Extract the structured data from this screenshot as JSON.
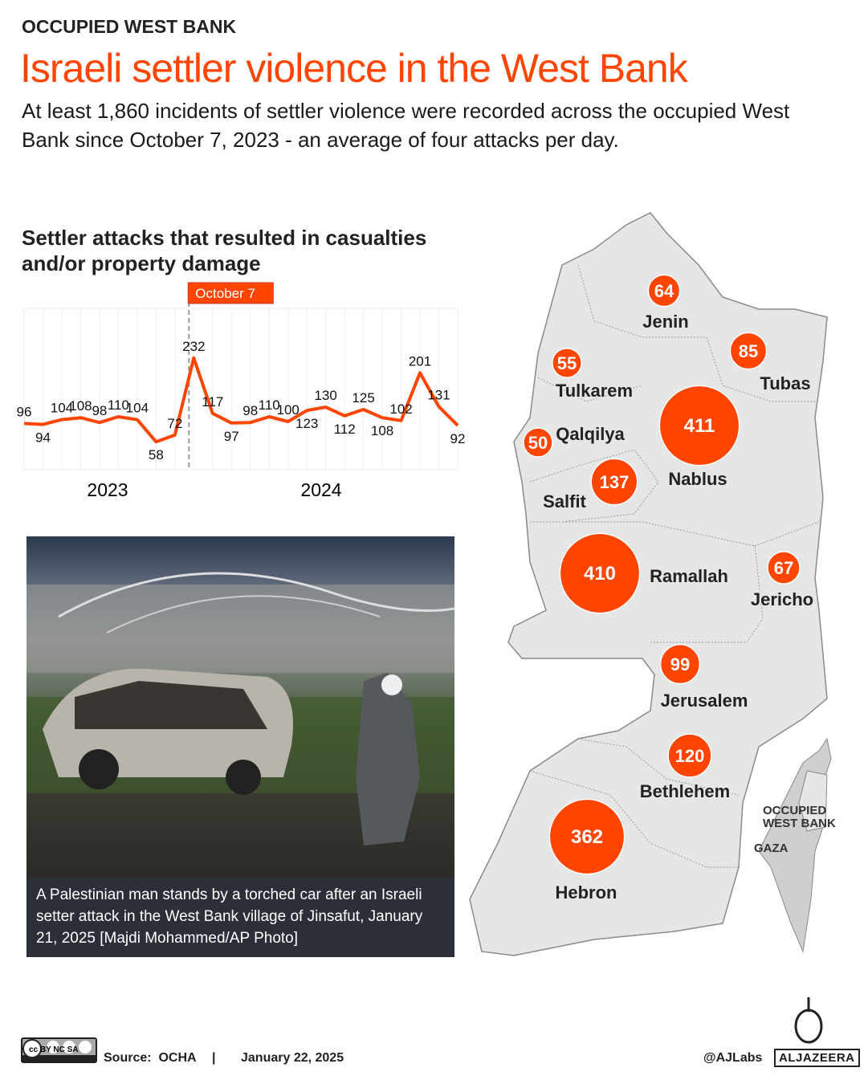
{
  "header": {
    "kicker": "OCCUPIED WEST BANK",
    "title": "Israeli settler violence in the West Bank",
    "subtitle": "At least 1,860 incidents of settler violence were recorded across the occupied West Bank since October 7, 2023 - an average of four attacks per day."
  },
  "chart_data": {
    "type": "line",
    "title": "Settler attacks that resulted in casualties and/or property damage",
    "x_labels": [
      "2023",
      "2024"
    ],
    "values": [
      96,
      94,
      104,
      108,
      98,
      110,
      104,
      58,
      72,
      232,
      117,
      97,
      98,
      110,
      100,
      123,
      130,
      112,
      125,
      108,
      102,
      201,
      131,
      92
    ],
    "annotation": "October 7",
    "annotation_index": 9,
    "ylim": [
      0,
      335
    ],
    "grid": "vertical",
    "color": "#ff4500"
  },
  "map": {
    "color": "#ff4500",
    "regions": [
      {
        "name": "Jenin",
        "value": "64"
      },
      {
        "name": "Tubas",
        "value": "85"
      },
      {
        "name": "Tulkarem",
        "value": "55"
      },
      {
        "name": "Nablus",
        "value": "411"
      },
      {
        "name": "Qalqilya",
        "value": "50"
      },
      {
        "name": "Salfit",
        "value": "137"
      },
      {
        "name": "Ramallah",
        "value": "410"
      },
      {
        "name": "Jericho",
        "value": "67"
      },
      {
        "name": "Jerusalem",
        "value": "99"
      },
      {
        "name": "Bethlehem",
        "value": "120"
      },
      {
        "name": "Hebron",
        "value": "362"
      }
    ],
    "inset": {
      "west_bank": "OCCUPIED WEST BANK",
      "gaza": "GAZA"
    }
  },
  "photo": {
    "caption": "A Palestinian man stands by a torched car after an Israeli setter attack in the West Bank village of Jinsafut, January 21, 2025 [Majdi Mohammed/AP Photo]"
  },
  "footer": {
    "license": "cc BY NC SA",
    "source_label": "Source:",
    "source": "OCHA",
    "separator": "|",
    "date": "January 22, 2025",
    "handle": "@AJLabs",
    "brand": "ALJAZEERA"
  }
}
